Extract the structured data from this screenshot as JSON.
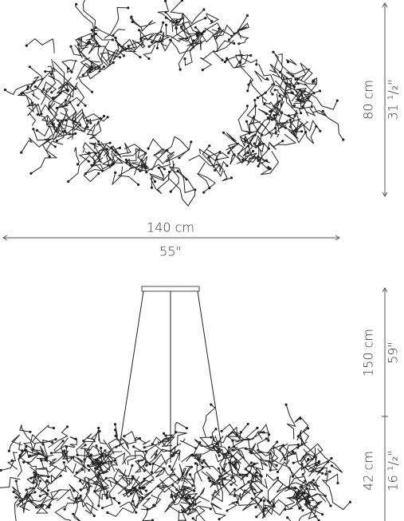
{
  "top_view": {
    "height_cm": "80 cm",
    "height_in": "31 ¹/₂\"",
    "width_cm": "140 cm",
    "width_in": "55\""
  },
  "side_view": {
    "drop_cm": "150 cm",
    "drop_in": "59\"",
    "body_cm": "42 cm",
    "body_in": "16 ¹/₂\""
  }
}
